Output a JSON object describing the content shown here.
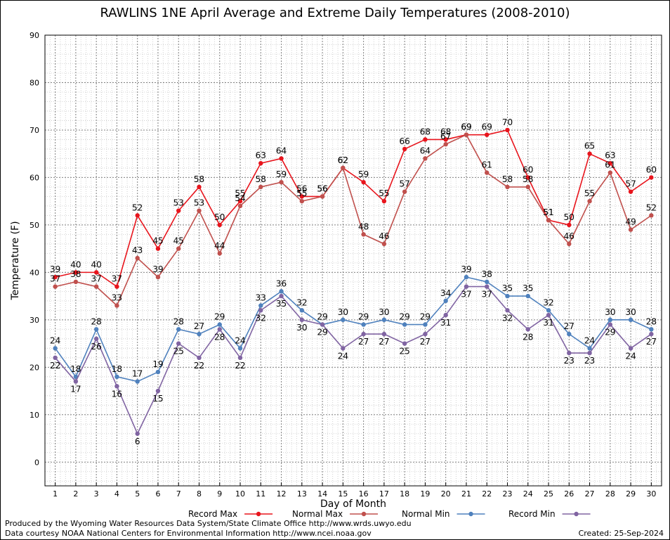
{
  "chart_data": {
    "type": "line",
    "title": "RAWLINS 1NE April Average and Extreme Daily Temperatures (2008-2010)",
    "xlabel": "Day of Month",
    "ylabel": "Temperature (F)",
    "x": [
      1,
      2,
      3,
      4,
      5,
      6,
      7,
      8,
      9,
      10,
      11,
      12,
      13,
      14,
      15,
      16,
      17,
      18,
      19,
      20,
      21,
      22,
      23,
      24,
      25,
      26,
      27,
      28,
      29,
      30
    ],
    "xlim": [
      0.5,
      30.5
    ],
    "ylim": [
      -5,
      90
    ],
    "yticks": [
      0,
      10,
      20,
      30,
      40,
      50,
      60,
      70,
      80,
      90
    ],
    "grid": true,
    "series": [
      {
        "name": "Record Max",
        "color": "#e8141c",
        "marker": "circle",
        "values": [
          39,
          40,
          40,
          37,
          52,
          45,
          53,
          58,
          50,
          55,
          63,
          64,
          56,
          56,
          62,
          59,
          55,
          66,
          68,
          68,
          69,
          69,
          70,
          60,
          51,
          50,
          65,
          63,
          57,
          60
        ]
      },
      {
        "name": "Normal Max",
        "color": "#c0504d",
        "marker": "circle",
        "values": [
          37,
          38,
          37,
          33,
          43,
          39,
          45,
          53,
          44,
          54,
          58,
          59,
          55,
          56,
          62,
          48,
          46,
          57,
          64,
          67,
          69,
          61,
          58,
          58,
          51,
          46,
          55,
          61,
          49,
          52
        ]
      },
      {
        "name": "Normal Min",
        "color": "#4f81bd",
        "marker": "circle",
        "values": [
          24,
          18,
          28,
          18,
          17,
          19,
          28,
          27,
          29,
          24,
          33,
          36,
          32,
          29,
          30,
          29,
          30,
          29,
          29,
          34,
          39,
          38,
          35,
          35,
          32,
          27,
          24,
          30,
          30,
          28
        ]
      },
      {
        "name": "Record Min",
        "color": "#8064a2",
        "marker": "circle",
        "values": [
          22,
          17,
          26,
          16,
          6,
          15,
          25,
          22,
          28,
          22,
          32,
          35,
          30,
          29,
          24,
          27,
          27,
          25,
          27,
          31,
          37,
          37,
          32,
          28,
          31,
          23,
          23,
          29,
          24,
          27
        ]
      }
    ],
    "legend_position": "bottom"
  },
  "footer": {
    "credit_line1": "Produced by the Wyoming Water Resources Data System/State Climate Office http://www.wrds.uwyo.edu",
    "credit_line2": "Data courtesy NOAA National Centers for Environmental Information http://www.ncei.noaa.gov",
    "created": "Created:  25-Sep-2024"
  }
}
